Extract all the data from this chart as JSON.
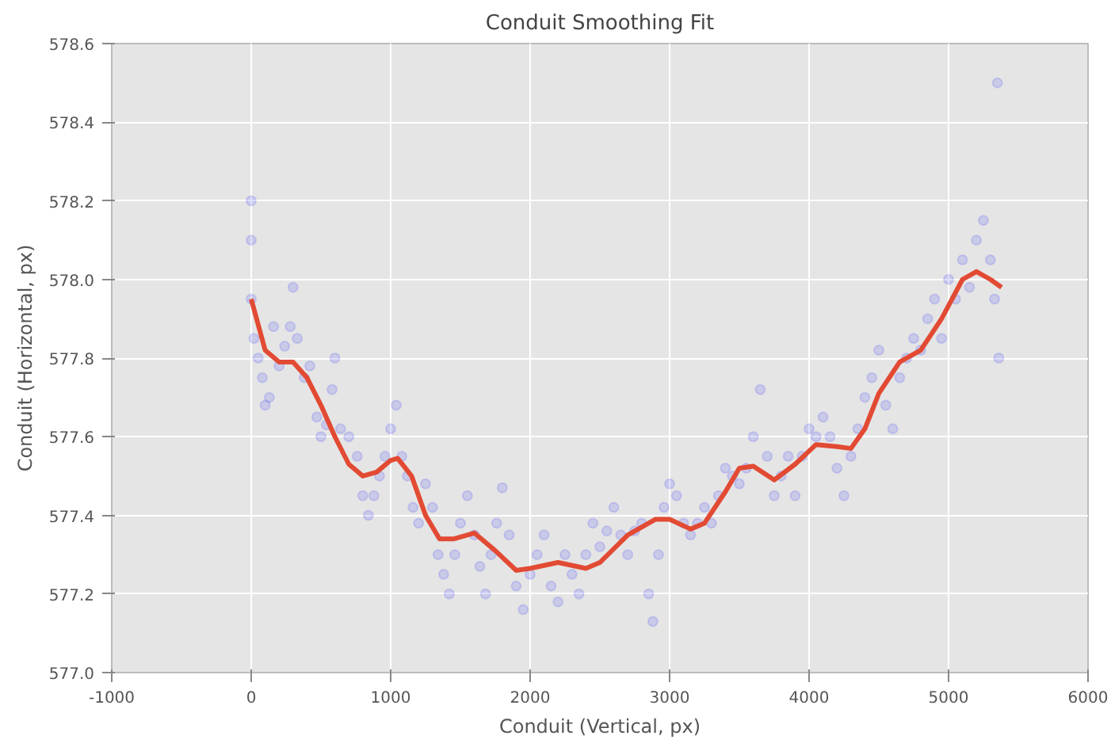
{
  "chart_data": {
    "type": "scatter",
    "title": "Conduit Smoothing Fit",
    "xlabel": "Conduit (Vertical, px)",
    "ylabel": "Conduit (Horizontal, px)",
    "xlim": [
      -1000,
      6000
    ],
    "xticks": [
      -1000,
      0,
      1000,
      2000,
      3000,
      4000,
      5000,
      6000
    ],
    "ylim": [
      577.0,
      578.6
    ],
    "yticks": [
      {
        "value": 577.0,
        "label": "577.0"
      },
      {
        "value": 577.2,
        "label": "577.2"
      },
      {
        "value": 577.4,
        "label": "577.4"
      },
      {
        "value": 577.6,
        "label": "577.6"
      },
      {
        "value": 577.8,
        "label": "577.8"
      },
      {
        "value": 578.0,
        "label": "578.0"
      },
      {
        "value": 578.2,
        "label": "578.2"
      },
      {
        "value": 578.4,
        "label": "578.4"
      },
      {
        "value": 578.6,
        "label": "578.6"
      }
    ],
    "grid": true,
    "marker": "circle",
    "series": [
      {
        "color": "#0000ff",
        "x": [
          0,
          0,
          0,
          20,
          50,
          80,
          100,
          130,
          160,
          200,
          240,
          280,
          300,
          330,
          380,
          420,
          470,
          500,
          540,
          580,
          600,
          640,
          700,
          760,
          800,
          840,
          880,
          920,
          960,
          1000,
          1040,
          1080,
          1120,
          1160,
          1200,
          1250,
          1300,
          1340,
          1380,
          1420,
          1460,
          1500,
          1550,
          1600,
          1640,
          1680,
          1720,
          1760,
          1800,
          1850,
          1900,
          1950,
          2000,
          2050,
          2100,
          2150,
          2200,
          2250,
          2300,
          2350,
          2400,
          2450,
          2500,
          2550,
          2600,
          2650,
          2700,
          2750,
          2800,
          2850,
          2880,
          2920,
          2960,
          3000,
          3050,
          3100,
          3150,
          3200,
          3250,
          3300,
          3350,
          3400,
          3450,
          3500,
          3550,
          3600,
          3650,
          3700,
          3750,
          3800,
          3850,
          3900,
          3950,
          4000,
          4050,
          4100,
          4150,
          4200,
          4250,
          4300,
          4350,
          4400,
          4450,
          4500,
          4550,
          4600,
          4650,
          4700,
          4750,
          4800,
          4850,
          4900,
          4950,
          5000,
          5050,
          5100,
          5150,
          5200,
          5250,
          5300,
          5330,
          5360,
          5350
        ],
        "values": [
          578.2,
          578.1,
          577.95,
          577.85,
          577.8,
          577.75,
          577.68,
          577.7,
          577.88,
          577.78,
          577.83,
          577.88,
          577.98,
          577.85,
          577.75,
          577.78,
          577.65,
          577.6,
          577.63,
          577.72,
          577.8,
          577.62,
          577.6,
          577.55,
          577.45,
          577.4,
          577.45,
          577.5,
          577.55,
          577.62,
          577.68,
          577.55,
          577.5,
          577.42,
          577.38,
          577.48,
          577.42,
          577.3,
          577.25,
          577.2,
          577.3,
          577.38,
          577.45,
          577.35,
          577.27,
          577.2,
          577.3,
          577.38,
          577.47,
          577.35,
          577.22,
          577.16,
          577.25,
          577.3,
          577.35,
          577.22,
          577.18,
          577.3,
          577.25,
          577.2,
          577.3,
          577.38,
          577.32,
          577.36,
          577.42,
          577.35,
          577.3,
          577.36,
          577.38,
          577.2,
          577.13,
          577.3,
          577.42,
          577.48,
          577.45,
          577.38,
          577.35,
          577.38,
          577.42,
          577.38,
          577.45,
          577.52,
          577.5,
          577.48,
          577.52,
          577.6,
          577.72,
          577.55,
          577.45,
          577.5,
          577.55,
          577.45,
          577.55,
          577.62,
          577.6,
          577.65,
          577.6,
          577.52,
          577.45,
          577.55,
          577.62,
          577.7,
          577.75,
          577.82,
          577.68,
          577.62,
          577.75,
          577.8,
          577.85,
          577.82,
          577.9,
          577.95,
          577.85,
          578.0,
          577.95,
          578.05,
          577.98,
          578.1,
          578.15,
          578.05,
          577.95,
          577.8,
          578.5
        ]
      },
      {
        "type": "line",
        "color": "#e24a33",
        "marker": "none",
        "x": [
          0,
          100,
          200,
          300,
          400,
          500,
          600,
          700,
          800,
          900,
          1000,
          1050,
          1150,
          1250,
          1350,
          1450,
          1600,
          1750,
          1900,
          2000,
          2200,
          2400,
          2500,
          2700,
          2900,
          3000,
          3150,
          3250,
          3400,
          3500,
          3600,
          3750,
          3900,
          4050,
          4200,
          4300,
          4400,
          4500,
          4650,
          4800,
          4950,
          5100,
          5200,
          5300,
          5380
        ],
        "values": [
          577.95,
          577.82,
          577.79,
          577.79,
          577.75,
          577.68,
          577.6,
          577.53,
          577.5,
          577.51,
          577.54,
          577.545,
          577.5,
          577.4,
          577.34,
          577.34,
          577.355,
          577.31,
          577.26,
          577.265,
          577.28,
          577.265,
          577.28,
          577.35,
          577.39,
          577.39,
          577.365,
          577.38,
          577.46,
          577.52,
          577.525,
          577.49,
          577.53,
          577.58,
          577.575,
          577.57,
          577.62,
          577.71,
          577.79,
          577.82,
          577.9,
          578.0,
          578.02,
          578.0,
          577.98
        ]
      }
    ]
  }
}
